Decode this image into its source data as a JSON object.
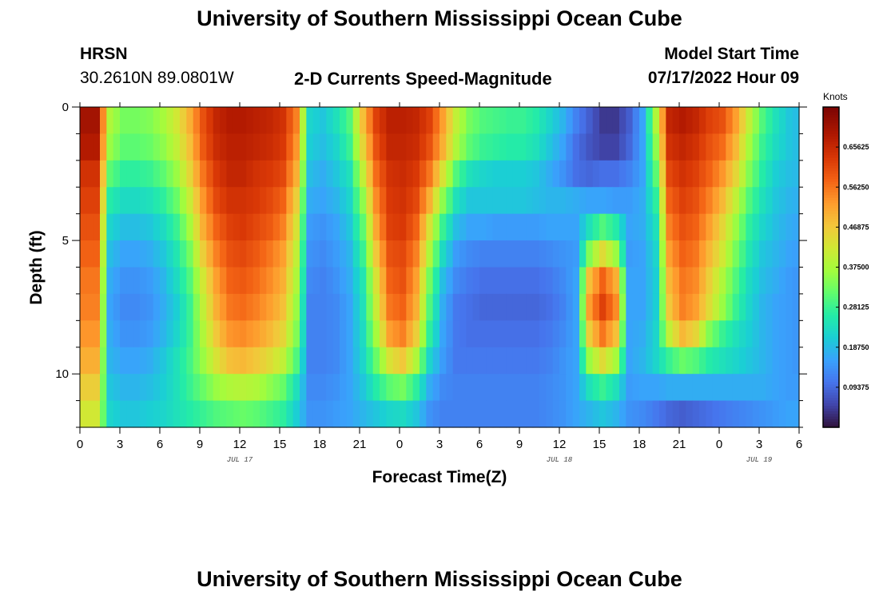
{
  "page": {
    "title": "University of Southern Mississippi Ocean Cube",
    "footer_title": "University of Southern Mississippi Ocean Cube",
    "station": "HRSN",
    "coordinates": "30.2610N  89.0801W",
    "subtitle": "2-D Currents Speed-Magnitude",
    "model_start_label": "Model Start Time",
    "model_start_value": "07/17/2022 Hour 09"
  },
  "chart_data": {
    "type": "heatmap",
    "title": "2-D Currents Speed-Magnitude",
    "xlabel": "Forecast Time(Z)",
    "ylabel": "Depth (ft)",
    "x_range_hours": [
      0,
      54
    ],
    "y_range_ft": [
      0,
      12
    ],
    "x_ticks": [
      {
        "h": 0,
        "label": "0"
      },
      {
        "h": 3,
        "label": "3"
      },
      {
        "h": 6,
        "label": "6"
      },
      {
        "h": 9,
        "label": "9"
      },
      {
        "h": 12,
        "label": "12"
      },
      {
        "h": 15,
        "label": "15"
      },
      {
        "h": 18,
        "label": "18"
      },
      {
        "h": 21,
        "label": "21"
      },
      {
        "h": 24,
        "label": "0"
      },
      {
        "h": 27,
        "label": "3"
      },
      {
        "h": 30,
        "label": "6"
      },
      {
        "h": 33,
        "label": "9"
      },
      {
        "h": 36,
        "label": "12"
      },
      {
        "h": 39,
        "label": "15"
      },
      {
        "h": 42,
        "label": "18"
      },
      {
        "h": 45,
        "label": "21"
      },
      {
        "h": 48,
        "label": "0"
      },
      {
        "h": 51,
        "label": "3"
      },
      {
        "h": 54,
        "label": "6"
      }
    ],
    "date_labels": [
      {
        "h": 12,
        "label": "JUL 17"
      },
      {
        "h": 36,
        "label": "JUL 18"
      },
      {
        "h": 51,
        "label": "JUL 19"
      }
    ],
    "y_ticks": [
      {
        "ft": 0,
        "label": "0"
      },
      {
        "ft": 5,
        "label": "5"
      },
      {
        "ft": 10,
        "label": "10"
      }
    ],
    "colorbar": {
      "title": "Knots",
      "min": 0.0,
      "max": 0.75,
      "ticks": [
        "0.09375",
        "0.18750",
        "0.28125",
        "0.37500",
        "0.46875",
        "0.56250",
        "0.65625"
      ]
    },
    "time_step_hours": 0.5,
    "depth_rows_ft": [
      0.5,
      1.5,
      2.5,
      3.5,
      4.5,
      5.5,
      6.5,
      7.5,
      8.5,
      9.5,
      10.5,
      11.5
    ],
    "speed_knots_hourly": [
      [
        0.7,
        0.7,
        0.38,
        0.33,
        0.33,
        0.34,
        0.37,
        0.42,
        0.5,
        0.6,
        0.66,
        0.68,
        0.68,
        0.67,
        0.66,
        0.64,
        0.55,
        0.22,
        0.2,
        0.24,
        0.3,
        0.48,
        0.62,
        0.67,
        0.67,
        0.66,
        0.62,
        0.52,
        0.4,
        0.33,
        0.3,
        0.29,
        0.28,
        0.28,
        0.26,
        0.22,
        0.18,
        0.12,
        0.08,
        0.04,
        0.04,
        0.08,
        0.16,
        0.38,
        0.66,
        0.68,
        0.66,
        0.62,
        0.6,
        0.52,
        0.4,
        0.3,
        0.24,
        0.2,
        0.18
      ],
      [
        0.68,
        0.68,
        0.36,
        0.31,
        0.31,
        0.32,
        0.35,
        0.4,
        0.48,
        0.59,
        0.65,
        0.67,
        0.67,
        0.66,
        0.65,
        0.63,
        0.53,
        0.21,
        0.19,
        0.22,
        0.28,
        0.45,
        0.6,
        0.66,
        0.66,
        0.65,
        0.6,
        0.5,
        0.38,
        0.31,
        0.28,
        0.27,
        0.26,
        0.26,
        0.24,
        0.2,
        0.16,
        0.1,
        0.07,
        0.05,
        0.05,
        0.09,
        0.16,
        0.35,
        0.64,
        0.66,
        0.64,
        0.6,
        0.57,
        0.49,
        0.37,
        0.28,
        0.23,
        0.2,
        0.18
      ],
      [
        0.64,
        0.64,
        0.31,
        0.27,
        0.27,
        0.28,
        0.31,
        0.36,
        0.45,
        0.56,
        0.63,
        0.66,
        0.66,
        0.64,
        0.63,
        0.61,
        0.5,
        0.19,
        0.17,
        0.2,
        0.24,
        0.4,
        0.57,
        0.64,
        0.65,
        0.63,
        0.56,
        0.43,
        0.3,
        0.24,
        0.22,
        0.21,
        0.21,
        0.21,
        0.2,
        0.17,
        0.14,
        0.1,
        0.09,
        0.1,
        0.1,
        0.12,
        0.16,
        0.31,
        0.61,
        0.64,
        0.62,
        0.58,
        0.53,
        0.45,
        0.34,
        0.26,
        0.21,
        0.19,
        0.18
      ],
      [
        0.62,
        0.62,
        0.26,
        0.23,
        0.23,
        0.24,
        0.27,
        0.32,
        0.41,
        0.53,
        0.61,
        0.64,
        0.64,
        0.63,
        0.61,
        0.58,
        0.46,
        0.17,
        0.16,
        0.18,
        0.22,
        0.35,
        0.54,
        0.63,
        0.64,
        0.61,
        0.5,
        0.35,
        0.24,
        0.2,
        0.2,
        0.2,
        0.2,
        0.2,
        0.19,
        0.18,
        0.18,
        0.17,
        0.16,
        0.16,
        0.15,
        0.15,
        0.17,
        0.27,
        0.58,
        0.62,
        0.6,
        0.55,
        0.49,
        0.4,
        0.3,
        0.24,
        0.2,
        0.18,
        0.17
      ],
      [
        0.6,
        0.6,
        0.22,
        0.19,
        0.19,
        0.2,
        0.23,
        0.28,
        0.37,
        0.5,
        0.58,
        0.62,
        0.63,
        0.61,
        0.59,
        0.55,
        0.43,
        0.15,
        0.14,
        0.16,
        0.2,
        0.31,
        0.51,
        0.62,
        0.63,
        0.58,
        0.43,
        0.28,
        0.19,
        0.16,
        0.16,
        0.15,
        0.15,
        0.15,
        0.15,
        0.16,
        0.16,
        0.16,
        0.24,
        0.3,
        0.26,
        0.16,
        0.17,
        0.24,
        0.55,
        0.6,
        0.58,
        0.52,
        0.45,
        0.36,
        0.27,
        0.22,
        0.19,
        0.17,
        0.16
      ],
      [
        0.58,
        0.58,
        0.19,
        0.16,
        0.16,
        0.17,
        0.2,
        0.25,
        0.33,
        0.46,
        0.55,
        0.6,
        0.61,
        0.59,
        0.56,
        0.52,
        0.4,
        0.14,
        0.13,
        0.15,
        0.18,
        0.28,
        0.47,
        0.6,
        0.61,
        0.55,
        0.38,
        0.23,
        0.15,
        0.13,
        0.12,
        0.12,
        0.12,
        0.12,
        0.12,
        0.13,
        0.14,
        0.15,
        0.34,
        0.44,
        0.36,
        0.15,
        0.16,
        0.22,
        0.52,
        0.58,
        0.56,
        0.49,
        0.42,
        0.33,
        0.25,
        0.2,
        0.18,
        0.16,
        0.15
      ],
      [
        0.56,
        0.56,
        0.17,
        0.14,
        0.14,
        0.15,
        0.18,
        0.23,
        0.3,
        0.42,
        0.52,
        0.58,
        0.59,
        0.57,
        0.54,
        0.5,
        0.38,
        0.13,
        0.12,
        0.14,
        0.17,
        0.25,
        0.43,
        0.58,
        0.6,
        0.52,
        0.33,
        0.19,
        0.13,
        0.11,
        0.1,
        0.1,
        0.1,
        0.1,
        0.1,
        0.11,
        0.13,
        0.16,
        0.48,
        0.58,
        0.5,
        0.16,
        0.16,
        0.21,
        0.49,
        0.56,
        0.54,
        0.46,
        0.38,
        0.3,
        0.23,
        0.19,
        0.17,
        0.15,
        0.14
      ],
      [
        0.55,
        0.55,
        0.16,
        0.13,
        0.13,
        0.14,
        0.17,
        0.21,
        0.28,
        0.4,
        0.5,
        0.56,
        0.57,
        0.55,
        0.52,
        0.48,
        0.36,
        0.12,
        0.12,
        0.13,
        0.16,
        0.24,
        0.41,
        0.56,
        0.58,
        0.5,
        0.3,
        0.17,
        0.11,
        0.1,
        0.09,
        0.09,
        0.09,
        0.09,
        0.09,
        0.1,
        0.12,
        0.16,
        0.52,
        0.62,
        0.54,
        0.16,
        0.16,
        0.21,
        0.47,
        0.55,
        0.52,
        0.44,
        0.36,
        0.28,
        0.22,
        0.18,
        0.16,
        0.15,
        0.14
      ],
      [
        0.53,
        0.53,
        0.17,
        0.14,
        0.14,
        0.15,
        0.18,
        0.22,
        0.28,
        0.38,
        0.47,
        0.53,
        0.54,
        0.52,
        0.49,
        0.45,
        0.34,
        0.12,
        0.12,
        0.13,
        0.16,
        0.23,
        0.37,
        0.52,
        0.55,
        0.46,
        0.27,
        0.16,
        0.11,
        0.1,
        0.1,
        0.1,
        0.1,
        0.1,
        0.1,
        0.11,
        0.13,
        0.16,
        0.46,
        0.56,
        0.48,
        0.16,
        0.17,
        0.22,
        0.4,
        0.49,
        0.45,
        0.34,
        0.28,
        0.24,
        0.21,
        0.18,
        0.16,
        0.15,
        0.14
      ],
      [
        0.5,
        0.5,
        0.18,
        0.16,
        0.16,
        0.17,
        0.2,
        0.24,
        0.29,
        0.36,
        0.43,
        0.48,
        0.49,
        0.47,
        0.44,
        0.4,
        0.3,
        0.12,
        0.12,
        0.13,
        0.16,
        0.22,
        0.32,
        0.43,
        0.47,
        0.38,
        0.22,
        0.15,
        0.11,
        0.11,
        0.11,
        0.11,
        0.11,
        0.11,
        0.11,
        0.12,
        0.14,
        0.16,
        0.36,
        0.44,
        0.37,
        0.16,
        0.18,
        0.22,
        0.28,
        0.32,
        0.3,
        0.26,
        0.24,
        0.22,
        0.2,
        0.18,
        0.16,
        0.15,
        0.14
      ],
      [
        0.46,
        0.46,
        0.2,
        0.18,
        0.18,
        0.19,
        0.21,
        0.24,
        0.28,
        0.32,
        0.36,
        0.38,
        0.39,
        0.38,
        0.35,
        0.32,
        0.24,
        0.13,
        0.13,
        0.14,
        0.16,
        0.2,
        0.26,
        0.31,
        0.33,
        0.27,
        0.17,
        0.13,
        0.12,
        0.12,
        0.12,
        0.12,
        0.12,
        0.12,
        0.12,
        0.13,
        0.14,
        0.16,
        0.24,
        0.28,
        0.24,
        0.15,
        0.16,
        0.16,
        0.17,
        0.17,
        0.17,
        0.17,
        0.17,
        0.17,
        0.17,
        0.17,
        0.16,
        0.15,
        0.15
      ],
      [
        0.42,
        0.42,
        0.22,
        0.2,
        0.2,
        0.21,
        0.22,
        0.24,
        0.26,
        0.28,
        0.3,
        0.31,
        0.32,
        0.31,
        0.29,
        0.27,
        0.21,
        0.14,
        0.14,
        0.15,
        0.16,
        0.18,
        0.2,
        0.22,
        0.23,
        0.2,
        0.14,
        0.12,
        0.12,
        0.12,
        0.12,
        0.12,
        0.12,
        0.12,
        0.12,
        0.13,
        0.14,
        0.16,
        0.18,
        0.2,
        0.18,
        0.14,
        0.13,
        0.11,
        0.09,
        0.08,
        0.09,
        0.1,
        0.11,
        0.12,
        0.13,
        0.14,
        0.15,
        0.16,
        0.16
      ]
    ]
  }
}
